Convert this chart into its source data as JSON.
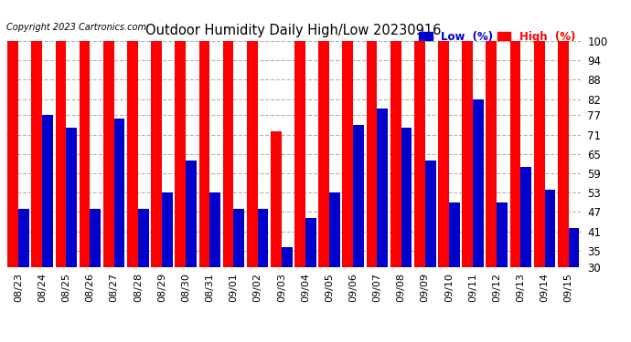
{
  "title": "Outdoor Humidity Daily High/Low 20230916",
  "copyright": "Copyright 2023 Cartronics.com",
  "legend_low": "Low  (%)",
  "legend_high": "High  (%)",
  "ylim": [
    30,
    100
  ],
  "yticks": [
    30,
    35,
    41,
    47,
    53,
    59,
    65,
    71,
    77,
    82,
    88,
    94,
    100
  ],
  "background_color": "#ffffff",
  "bar_color_high": "#ff0000",
  "bar_color_low": "#0000cc",
  "dates": [
    "08/23",
    "08/24",
    "08/25",
    "08/26",
    "08/27",
    "08/28",
    "08/29",
    "08/30",
    "08/31",
    "09/01",
    "09/02",
    "09/03",
    "09/04",
    "09/05",
    "09/06",
    "09/07",
    "09/08",
    "09/09",
    "09/10",
    "09/11",
    "09/12",
    "09/13",
    "09/14",
    "09/15"
  ],
  "high_values": [
    100,
    100,
    100,
    100,
    100,
    100,
    100,
    100,
    100,
    100,
    100,
    72,
    100,
    100,
    100,
    100,
    100,
    100,
    100,
    100,
    100,
    100,
    100,
    100
  ],
  "low_values": [
    48,
    77,
    73,
    48,
    76,
    48,
    53,
    63,
    53,
    48,
    48,
    36,
    45,
    53,
    74,
    79,
    73,
    63,
    50,
    82,
    50,
    61,
    54,
    42
  ]
}
